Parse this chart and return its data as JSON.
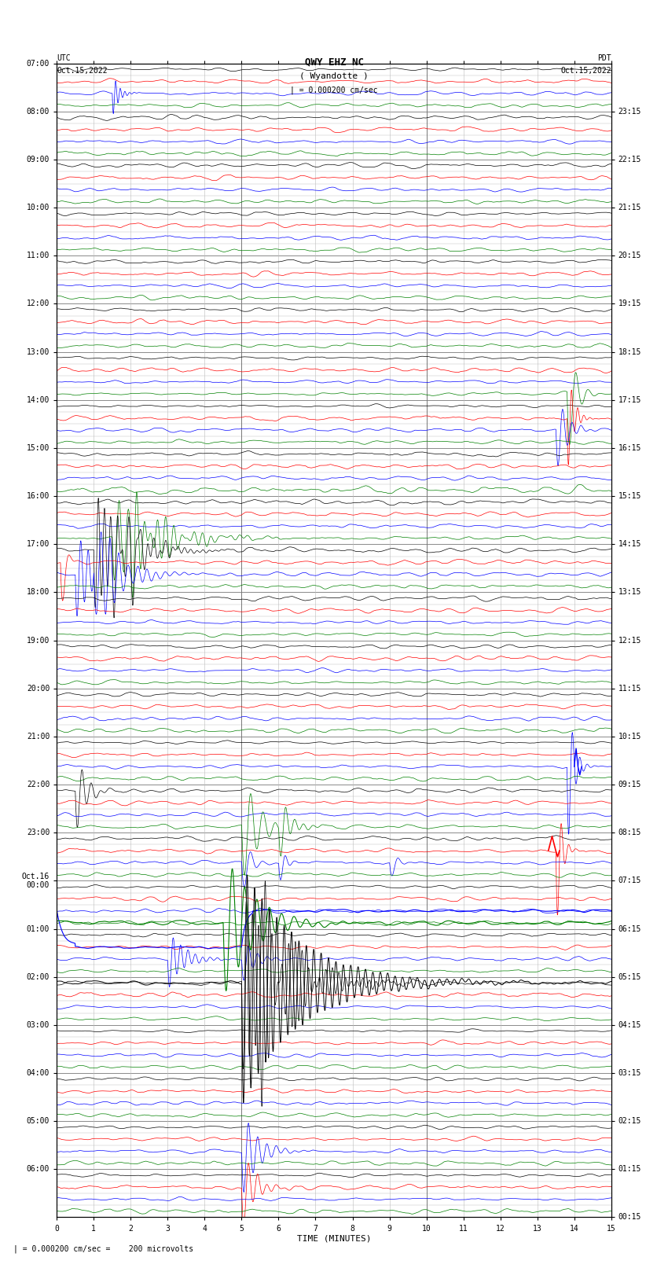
{
  "title_line1": "QWY EHZ NC",
  "title_line2": "( Wyandotte )",
  "scale_text": "| = 0.000200 cm/sec",
  "footer_text": "| = 0.000200 cm/sec =    200 microvolts",
  "left_label_top": "UTC",
  "left_label_bot": "Oct.15,2022",
  "right_label_top": "PDT",
  "right_label_bot": "Oct.15,2022",
  "xlabel": "TIME (MINUTES)",
  "bg_color": "#ffffff",
  "grid_color": "#999999",
  "trace_colors": [
    "black",
    "red",
    "blue",
    "green"
  ],
  "tick_label_fontsize": 7,
  "title_fontsize": 9,
  "num_rows": 96,
  "xmin": 0,
  "xmax": 15,
  "left_hour_rows": [
    0,
    4,
    8,
    12,
    16,
    20,
    24,
    28,
    32,
    36,
    40,
    44,
    48,
    52,
    56,
    60,
    64,
    68,
    72,
    76,
    80,
    84,
    88,
    92
  ],
  "left_hour_labels": [
    "07:00",
    "08:00",
    "09:00",
    "10:00",
    "11:00",
    "12:00",
    "13:00",
    "14:00",
    "15:00",
    "16:00",
    "17:00",
    "18:00",
    "19:00",
    "20:00",
    "21:00",
    "22:00",
    "23:00",
    "Oct.16\n00:00",
    "01:00",
    "02:00",
    "03:00",
    "04:00",
    "05:00",
    "06:00"
  ],
  "right_hour_rows": [
    0,
    4,
    8,
    12,
    16,
    20,
    24,
    28,
    32,
    36,
    40,
    44,
    48,
    52,
    56,
    60,
    64,
    68,
    72,
    76,
    80,
    84,
    88,
    92
  ],
  "right_hour_labels": [
    "00:15",
    "01:15",
    "02:15",
    "03:15",
    "04:15",
    "05:15",
    "06:15",
    "07:15",
    "08:15",
    "09:15",
    "10:15",
    "11:15",
    "12:15",
    "13:15",
    "14:15",
    "15:15",
    "16:15",
    "17:15",
    "18:15",
    "19:15",
    "20:15",
    "21:15",
    "22:15",
    "23:15"
  ]
}
